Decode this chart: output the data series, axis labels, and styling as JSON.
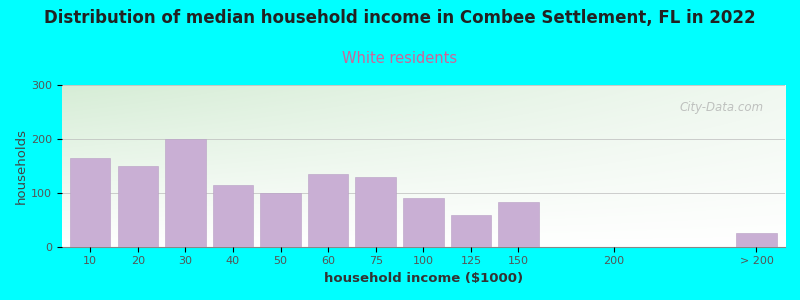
{
  "title": "Distribution of median household income in Combee Settlement, FL in 2022",
  "subtitle": "White residents",
  "xlabel": "household income ($1000)",
  "ylabel": "households",
  "background_color": "#00FFFF",
  "plot_bg_color_topleft": "#d6edd6",
  "plot_bg_color_right": "#f5faf5",
  "plot_bg_color_bottom": "#ffffff",
  "bar_color": "#c9afd4",
  "bar_edge_color": "#b89fc4",
  "categories": [
    "10",
    "20",
    "30",
    "40",
    "50",
    "60",
    "75",
    "100",
    "125",
    "150",
    "200",
    "> 200"
  ],
  "values": [
    165,
    150,
    200,
    115,
    100,
    135,
    130,
    90,
    58,
    83,
    0,
    25
  ],
  "ylim": [
    0,
    300
  ],
  "yticks": [
    0,
    100,
    200,
    300
  ],
  "title_fontsize": 12,
  "subtitle_fontsize": 10.5,
  "subtitle_color": "#cc6699",
  "title_color": "#222222",
  "axis_label_fontsize": 9.5,
  "tick_fontsize": 8,
  "watermark": "City-Data.com",
  "watermark_color": "#aaaaaa",
  "x_positions": [
    0,
    1,
    2,
    3,
    4,
    5,
    6,
    7,
    8,
    9,
    11,
    14
  ],
  "bar_width": 0.85
}
